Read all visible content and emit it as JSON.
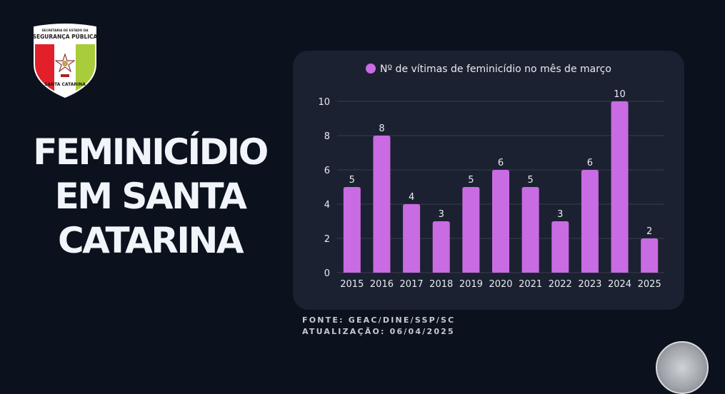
{
  "logo": {
    "top_text_small": "SECRETARIA DE ESTADO DA",
    "top_text_large": "SEGURANÇA PÚBLICA",
    "bottom_text": "SANTA CATARINA",
    "colors": {
      "red": "#e2202a",
      "white": "#ffffff",
      "green": "#a9cc3a"
    }
  },
  "headline": {
    "lines": [
      "FEMINICÍDIO",
      "EM SANTA",
      "CATARINA"
    ]
  },
  "footer": {
    "source": "FONTE: GEAC/DINE/SSP/SC",
    "updated": "ATUALIZAÇÃO: 06/04/2025"
  },
  "colors": {
    "background": "#0b111d",
    "card": "#1b2130",
    "bar": "#c96be3",
    "grid": "#2e3443",
    "text": "#e8ebf0"
  },
  "chart_data": {
    "type": "bar",
    "title": "",
    "xlabel": "",
    "ylabel": "",
    "legend": {
      "entries": [
        "Nº de vítimas de feminicídio no mês de março"
      ],
      "placement": "top-center"
    },
    "categories": [
      "2015",
      "2016",
      "2017",
      "2018",
      "2019",
      "2020",
      "2021",
      "2022",
      "2023",
      "2024",
      "2025"
    ],
    "series": [
      {
        "name": "Nº de vítimas de feminicídio no mês de março",
        "values": [
          5,
          8,
          4,
          3,
          5,
          6,
          5,
          3,
          6,
          10,
          2
        ]
      }
    ],
    "ylim": [
      0,
      10
    ],
    "yticks": [
      0,
      2,
      4,
      6,
      8,
      10
    ],
    "grid": true,
    "data_labels": true
  }
}
